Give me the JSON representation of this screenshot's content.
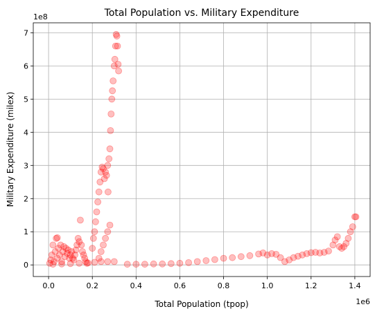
{
  "chart_data": {
    "type": "scatter",
    "title": "Total Population vs. Military Expenditure",
    "xlabel": "Total Population (tpop)",
    "ylabel": "Military Expenditure (milex)",
    "x_multiplier": "1e6",
    "y_multiplier": "1e8",
    "xlim": [
      -0.07,
      1.47
    ],
    "ylim": [
      -0.35,
      7.3
    ],
    "x_units": "millions (x 1e6)",
    "y_units": "hundreds of millions (x 1e8)",
    "xticks": [
      0.0,
      0.2,
      0.4,
      0.6,
      0.8,
      1.0,
      1.2,
      1.4
    ],
    "xtick_labels": [
      "0.0",
      "0.2",
      "0.4",
      "0.6",
      "0.8",
      "1.0",
      "1.2",
      "1.4"
    ],
    "yticks": [
      0,
      1,
      2,
      3,
      4,
      5,
      6,
      7
    ],
    "ytick_labels": [
      "0",
      "1",
      "2",
      "3",
      "4",
      "5",
      "6",
      "7"
    ],
    "grid": true,
    "marker_color": "#ff0000",
    "marker_alpha": 0.25,
    "points": [
      [
        0.005,
        0.05
      ],
      [
        0.01,
        0.15
      ],
      [
        0.015,
        0.3
      ],
      [
        0.02,
        0.6
      ],
      [
        0.025,
        0.1
      ],
      [
        0.03,
        0.4
      ],
      [
        0.035,
        0.8
      ],
      [
        0.04,
        0.82
      ],
      [
        0.04,
        0.2
      ],
      [
        0.045,
        0.5
      ],
      [
        0.05,
        0.3
      ],
      [
        0.055,
        0.6
      ],
      [
        0.06,
        0.1
      ],
      [
        0.065,
        0.4
      ],
      [
        0.07,
        0.55
      ],
      [
        0.075,
        0.25
      ],
      [
        0.08,
        0.5
      ],
      [
        0.085,
        0.35
      ],
      [
        0.09,
        0.45
      ],
      [
        0.095,
        0.2
      ],
      [
        0.1,
        0.3
      ],
      [
        0.105,
        0.4
      ],
      [
        0.11,
        0.2
      ],
      [
        0.115,
        0.15
      ],
      [
        0.12,
        0.3
      ],
      [
        0.125,
        0.45
      ],
      [
        0.13,
        0.6
      ],
      [
        0.135,
        0.8
      ],
      [
        0.14,
        0.7
      ],
      [
        0.145,
        1.35
      ],
      [
        0.15,
        0.6
      ],
      [
        0.155,
        0.4
      ],
      [
        0.16,
        0.3
      ],
      [
        0.165,
        0.2
      ],
      [
        0.17,
        0.1
      ],
      [
        0.175,
        0.05
      ],
      [
        0.02,
        0.02
      ],
      [
        0.06,
        0.03
      ],
      [
        0.1,
        0.04
      ],
      [
        0.14,
        0.05
      ],
      [
        0.18,
        0.06
      ],
      [
        0.21,
        0.08
      ],
      [
        0.24,
        0.1
      ],
      [
        0.27,
        0.1
      ],
      [
        0.3,
        0.1
      ],
      [
        0.2,
        0.5
      ],
      [
        0.205,
        0.8
      ],
      [
        0.21,
        1.0
      ],
      [
        0.215,
        1.3
      ],
      [
        0.22,
        1.6
      ],
      [
        0.225,
        1.9
      ],
      [
        0.23,
        2.2
      ],
      [
        0.235,
        2.5
      ],
      [
        0.24,
        2.8
      ],
      [
        0.245,
        2.95
      ],
      [
        0.25,
        2.9
      ],
      [
        0.255,
        2.6
      ],
      [
        0.26,
        2.8
      ],
      [
        0.265,
        2.7
      ],
      [
        0.27,
        3.0
      ],
      [
        0.272,
        2.2
      ],
      [
        0.276,
        3.2
      ],
      [
        0.28,
        3.5
      ],
      [
        0.283,
        4.05
      ],
      [
        0.286,
        4.55
      ],
      [
        0.289,
        5.0
      ],
      [
        0.292,
        5.25
      ],
      [
        0.295,
        5.55
      ],
      [
        0.3,
        6.0
      ],
      [
        0.303,
        6.2
      ],
      [
        0.306,
        6.6
      ],
      [
        0.309,
        6.95
      ],
      [
        0.312,
        6.9
      ],
      [
        0.315,
        6.6
      ],
      [
        0.318,
        6.05
      ],
      [
        0.32,
        5.85
      ],
      [
        0.28,
        1.2
      ],
      [
        0.27,
        1.0
      ],
      [
        0.26,
        0.8
      ],
      [
        0.25,
        0.6
      ],
      [
        0.24,
        0.4
      ],
      [
        0.23,
        0.2
      ],
      [
        0.36,
        0.02
      ],
      [
        0.4,
        0.02
      ],
      [
        0.44,
        0.02
      ],
      [
        0.48,
        0.03
      ],
      [
        0.52,
        0.03
      ],
      [
        0.56,
        0.04
      ],
      [
        0.6,
        0.05
      ],
      [
        0.64,
        0.07
      ],
      [
        0.68,
        0.1
      ],
      [
        0.72,
        0.13
      ],
      [
        0.76,
        0.16
      ],
      [
        0.8,
        0.2
      ],
      [
        0.84,
        0.22
      ],
      [
        0.88,
        0.25
      ],
      [
        0.92,
        0.28
      ],
      [
        0.96,
        0.33
      ],
      [
        0.98,
        0.36
      ],
      [
        1.0,
        0.3
      ],
      [
        1.02,
        0.34
      ],
      [
        1.04,
        0.32
      ],
      [
        1.06,
        0.22
      ],
      [
        1.08,
        0.1
      ],
      [
        1.1,
        0.15
      ],
      [
        1.12,
        0.22
      ],
      [
        1.14,
        0.26
      ],
      [
        1.16,
        0.3
      ],
      [
        1.18,
        0.34
      ],
      [
        1.2,
        0.37
      ],
      [
        1.22,
        0.38
      ],
      [
        1.24,
        0.36
      ],
      [
        1.26,
        0.38
      ],
      [
        1.28,
        0.42
      ],
      [
        1.3,
        0.6
      ],
      [
        1.31,
        0.75
      ],
      [
        1.32,
        0.85
      ],
      [
        1.33,
        0.55
      ],
      [
        1.34,
        0.5
      ],
      [
        1.35,
        0.55
      ],
      [
        1.36,
        0.65
      ],
      [
        1.37,
        0.8
      ],
      [
        1.38,
        1.0
      ],
      [
        1.39,
        1.15
      ],
      [
        1.4,
        1.45
      ],
      [
        1.405,
        1.45
      ]
    ]
  }
}
